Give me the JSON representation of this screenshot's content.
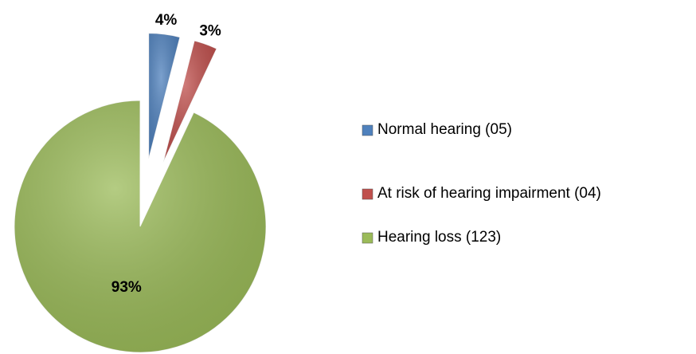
{
  "chart_data": {
    "type": "pie",
    "categories": [
      "Normal hearing (05)",
      "At risk of hearing impairment (04)",
      "Hearing loss (123)"
    ],
    "values": [
      4,
      3,
      93
    ],
    "value_labels": [
      "4%",
      "3%",
      "93%"
    ],
    "colors": [
      "#4f81bd",
      "#c0504d",
      "#9bbb59"
    ],
    "legend": "right"
  }
}
